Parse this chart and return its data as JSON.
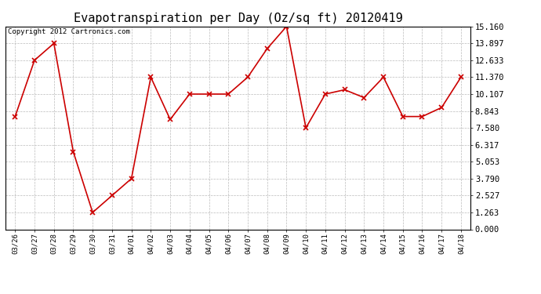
{
  "title": "Evapotranspiration per Day (Oz/sq ft) 20120419",
  "copyright_text": "Copyright 2012 Cartronics.com",
  "x_labels": [
    "03/26",
    "03/27",
    "03/28",
    "03/29",
    "03/30",
    "03/31",
    "04/01",
    "04/02",
    "04/03",
    "04/04",
    "04/05",
    "04/06",
    "04/07",
    "04/08",
    "04/09",
    "04/10",
    "04/11",
    "04/12",
    "04/13",
    "04/14",
    "04/15",
    "04/16",
    "04/17",
    "04/18"
  ],
  "y_values": [
    8.43,
    12.633,
    13.897,
    5.8,
    1.263,
    2.527,
    3.79,
    11.37,
    8.21,
    10.107,
    10.107,
    10.107,
    11.37,
    13.5,
    15.16,
    7.58,
    10.107,
    10.43,
    9.843,
    11.37,
    8.43,
    8.43,
    9.1,
    11.37
  ],
  "line_color": "#cc0000",
  "marker": "x",
  "marker_color": "#cc0000",
  "marker_size": 4,
  "line_width": 1.2,
  "yticks": [
    0.0,
    1.263,
    2.527,
    3.79,
    5.053,
    6.317,
    7.58,
    8.843,
    10.107,
    11.37,
    12.633,
    13.897,
    15.16
  ],
  "ylim": [
    0.0,
    15.16
  ],
  "background_color": "#ffffff",
  "plot_background": "#ffffff",
  "grid_color": "#bbbbbb",
  "title_fontsize": 11,
  "copyright_fontsize": 6.5,
  "xtick_fontsize": 6.5,
  "ytick_fontsize": 7.5
}
